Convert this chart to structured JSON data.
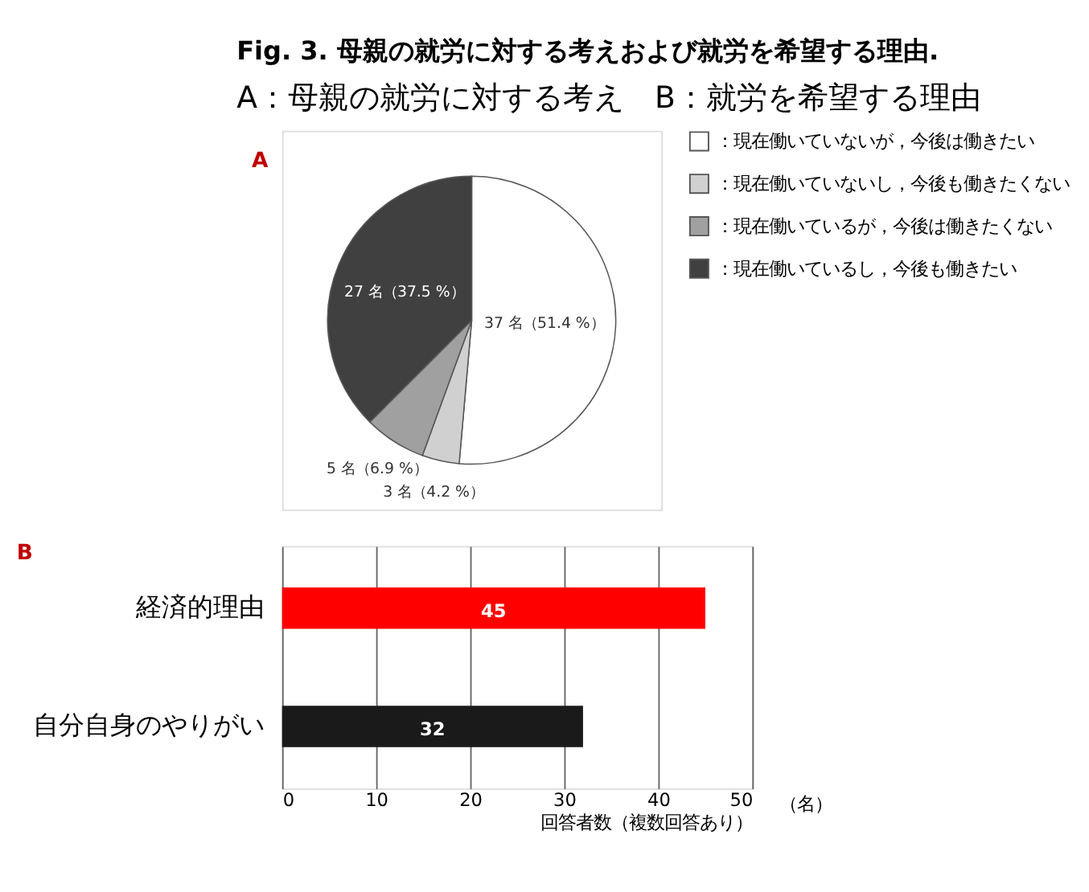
{
  "chart_data": [
    {
      "type": "pie",
      "title": "Fig. 3.  母親の就労に対する考えおよび就労を希望する理由.",
      "subtitle": "A：母親の就労に対する考え　B：就労を希望する理由",
      "annotations": [
        "A"
      ],
      "categories": [
        "：現在働いていないが，今後は働きたい",
        "：現在働いていないし，今後も働きたくない",
        "：現在働いているが，今後は働きたくない",
        "：現在働いているし，今後も働きたい"
      ],
      "values": [
        37,
        3,
        5,
        27
      ],
      "value_labels": [
        "37 名（51.4 %）",
        "3 名（4.2 %）",
        "5 名（6.9 %）",
        "27 名（37.5 %）"
      ],
      "colors": [
        "#ffffff",
        "#d0d0d0",
        "#a0a0a0",
        "#404040"
      ],
      "legend": "right"
    },
    {
      "type": "bar",
      "orientation": "horizontal",
      "annotations": [
        "B",
        "（名）"
      ],
      "categories": [
        "経済的理由",
        "自分自身のやりがい"
      ],
      "values": [
        45,
        32
      ],
      "colors": [
        "#ff0000",
        "#1a1a1a"
      ],
      "xlim": [
        0,
        50
      ],
      "xticks": [
        0,
        10,
        20,
        30,
        40,
        50
      ],
      "xlabel": "回答者数（複数回答あり）",
      "grid": "x",
      "data_labels": true
    }
  ]
}
